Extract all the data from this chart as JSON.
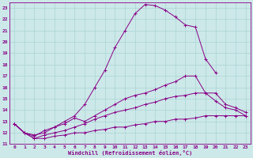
{
  "background_color": "#cce8e8",
  "grid_color": "#aad4d4",
  "line_color": "#880088",
  "xlabel": "Windchill (Refroidissement éolien,°C)",
  "xlabel_color": "#880088",
  "xlim": [
    -0.5,
    23.5
  ],
  "ylim": [
    11,
    23.5
  ],
  "yticks": [
    11,
    12,
    13,
    14,
    15,
    16,
    17,
    18,
    19,
    20,
    21,
    22,
    23
  ],
  "xticks": [
    0,
    1,
    2,
    3,
    4,
    5,
    6,
    7,
    8,
    9,
    10,
    11,
    12,
    13,
    14,
    15,
    16,
    17,
    18,
    19,
    20,
    21,
    22,
    23
  ],
  "lines": [
    {
      "x": [
        0,
        1,
        2,
        3,
        4,
        5,
        6,
        7,
        8,
        9,
        10,
        11,
        12,
        13,
        14,
        15,
        16,
        17,
        18,
        19,
        20
      ],
      "y": [
        12.8,
        12.0,
        11.8,
        12.0,
        12.5,
        13.0,
        13.5,
        14.5,
        16.0,
        17.5,
        19.5,
        21.0,
        22.5,
        23.3,
        23.2,
        22.8,
        22.2,
        21.5,
        21.3,
        18.5,
        17.3
      ]
    },
    {
      "x": [
        0,
        1,
        2,
        3,
        4,
        5,
        6,
        7,
        8,
        9,
        10,
        11,
        12,
        13,
        14,
        15,
        16,
        17,
        18,
        19,
        20,
        21,
        22,
        23
      ],
      "y": [
        12.8,
        12.0,
        11.7,
        12.2,
        12.5,
        12.8,
        13.3,
        13.0,
        13.5,
        14.0,
        14.5,
        15.0,
        15.3,
        15.5,
        15.8,
        16.2,
        16.5,
        17.0,
        17.0,
        15.5,
        14.8,
        14.2,
        14.0,
        13.5
      ]
    },
    {
      "x": [
        0,
        1,
        2,
        3,
        4,
        5,
        6,
        7,
        8,
        9,
        10,
        11,
        12,
        13,
        14,
        15,
        16,
        17,
        18,
        19,
        20,
        21,
        22,
        23
      ],
      "y": [
        12.8,
        12.0,
        11.5,
        11.8,
        12.0,
        12.2,
        12.5,
        12.8,
        13.2,
        13.5,
        13.8,
        14.0,
        14.2,
        14.5,
        14.7,
        15.0,
        15.2,
        15.3,
        15.5,
        15.5,
        15.5,
        14.5,
        14.2,
        13.8
      ]
    },
    {
      "x": [
        0,
        1,
        2,
        3,
        4,
        5,
        6,
        7,
        8,
        9,
        10,
        11,
        12,
        13,
        14,
        15,
        16,
        17,
        18,
        19,
        20,
        21,
        22,
        23
      ],
      "y": [
        12.8,
        12.0,
        11.5,
        11.5,
        11.7,
        11.8,
        12.0,
        12.0,
        12.2,
        12.3,
        12.5,
        12.5,
        12.7,
        12.8,
        13.0,
        13.0,
        13.2,
        13.2,
        13.3,
        13.5,
        13.5,
        13.5,
        13.5,
        13.5
      ]
    }
  ]
}
